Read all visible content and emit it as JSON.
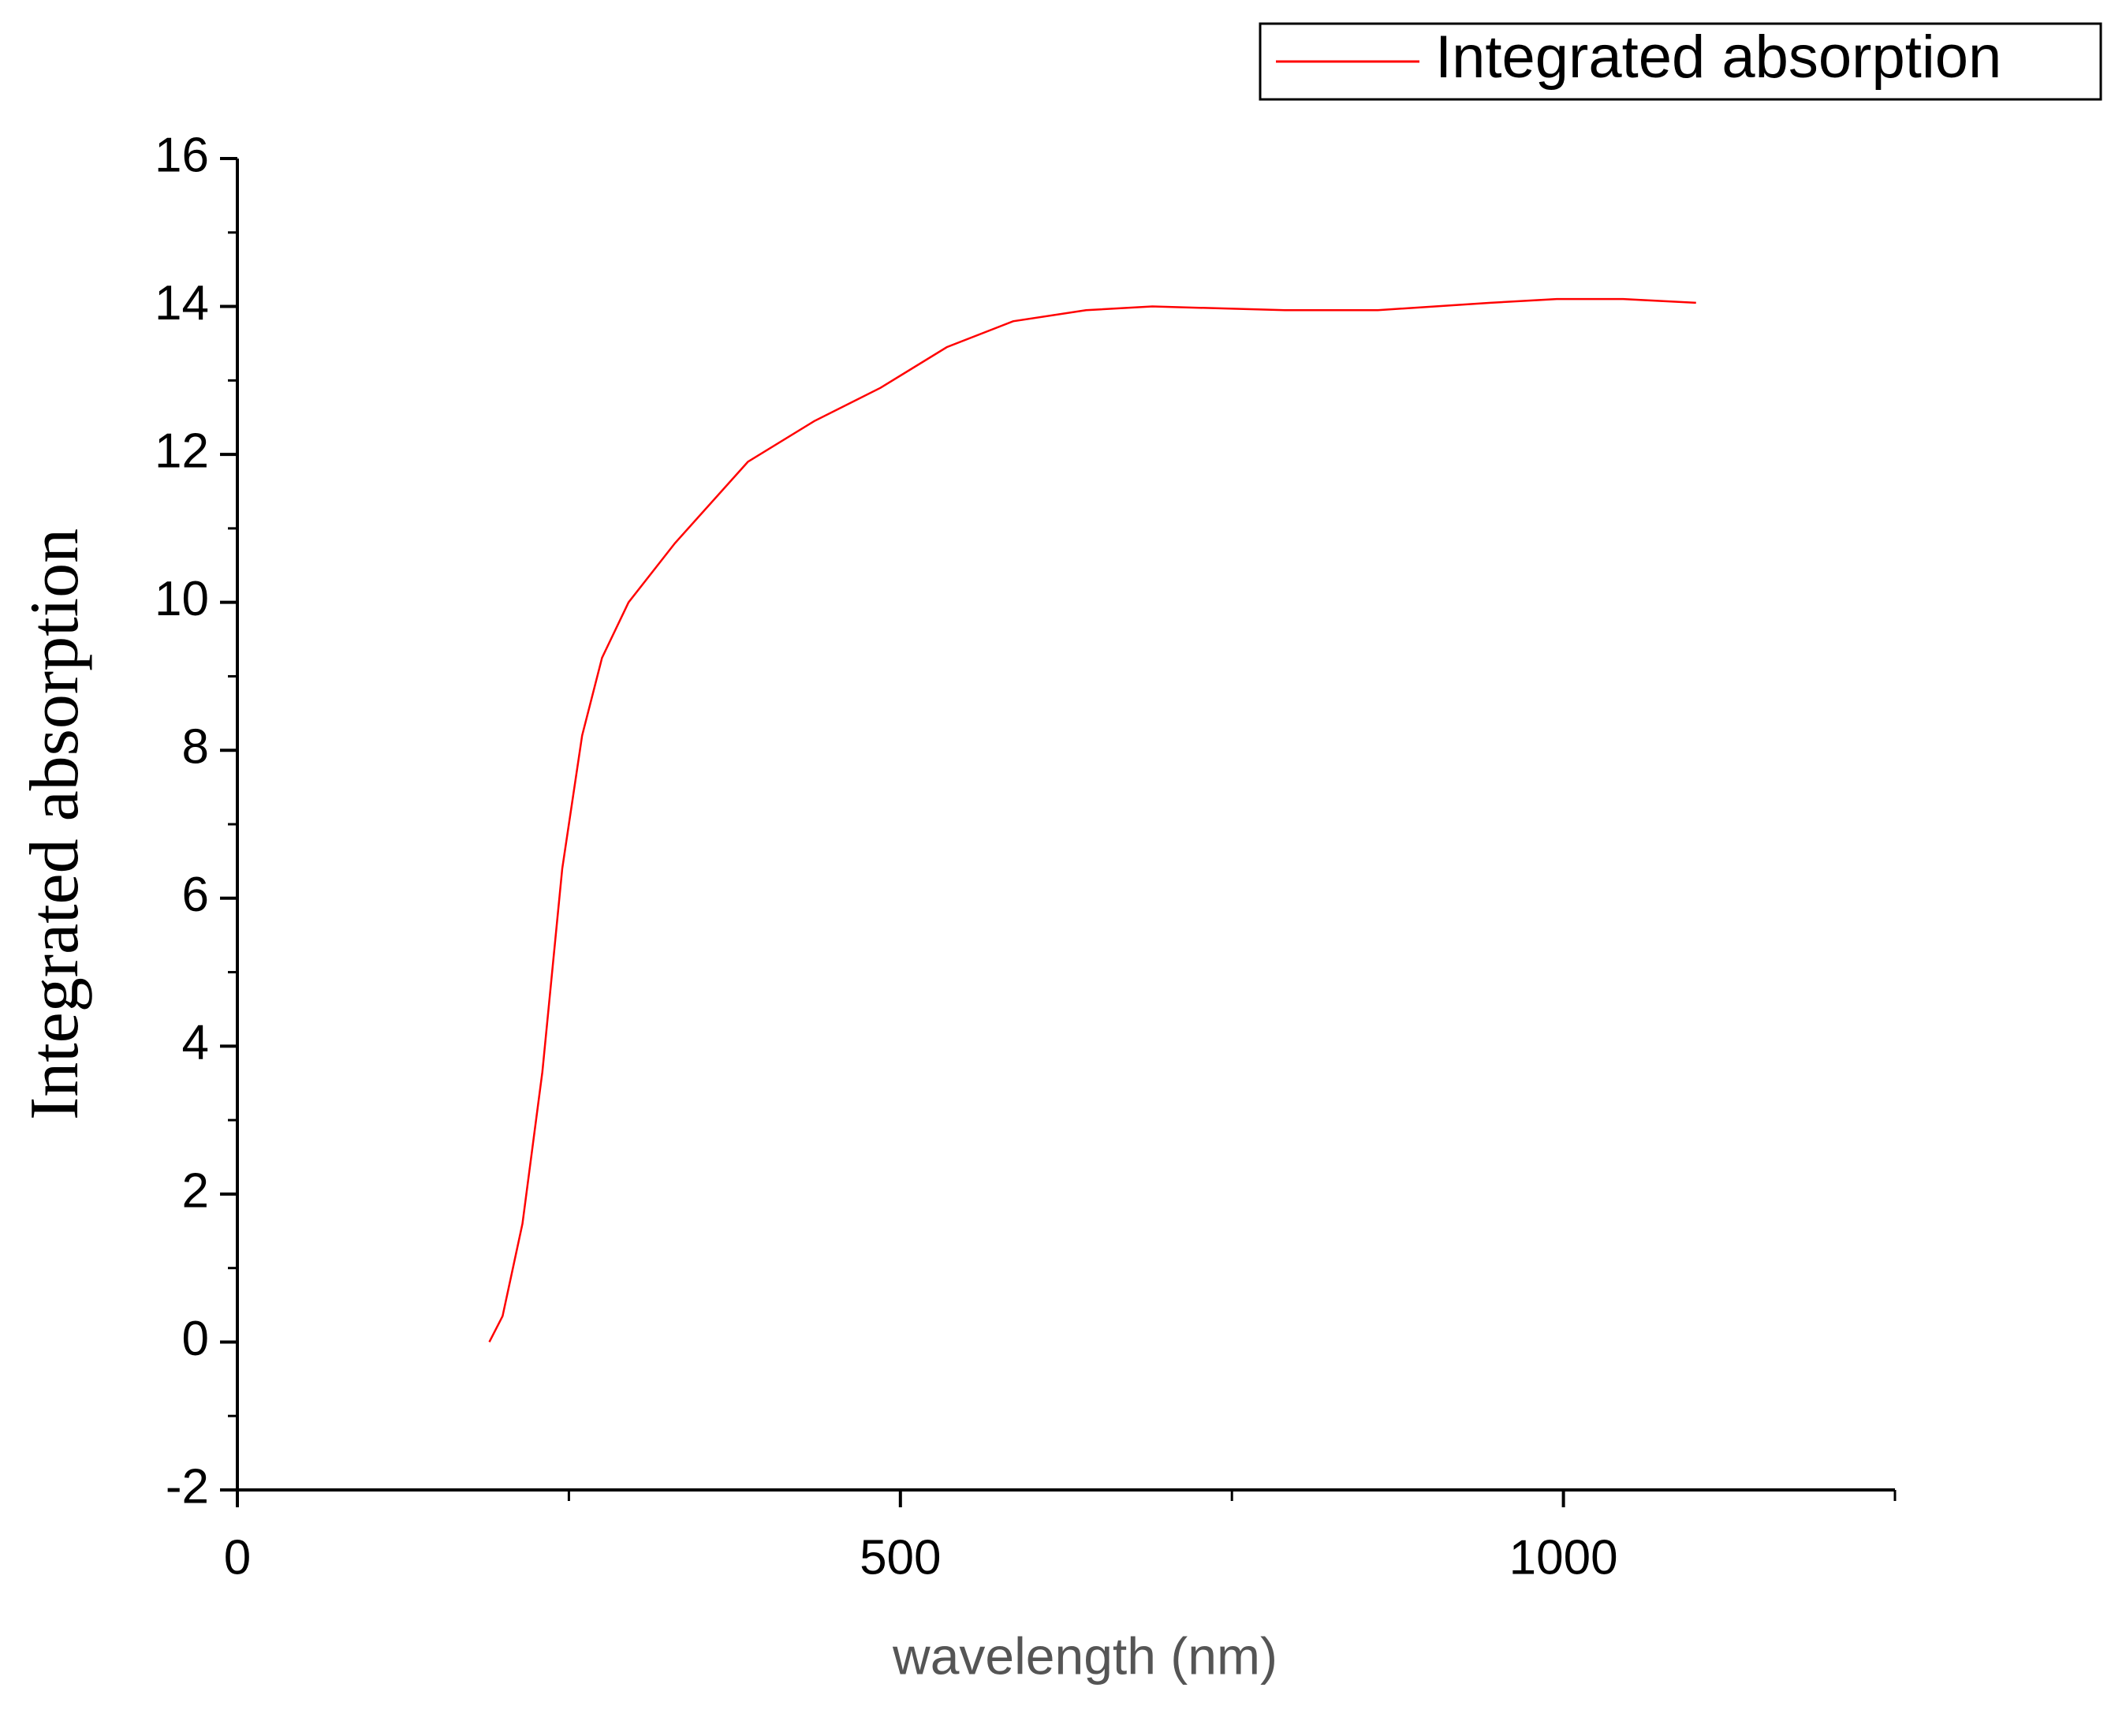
{
  "chart_data": {
    "type": "line",
    "x_label": "wavelength (nm)",
    "y_label": "Integrated absorption",
    "series": [
      {
        "name": "Integrated absorption",
        "color": "#ff0000",
        "x": [
          190,
          200,
          215,
          230,
          245,
          260,
          275,
          295,
          330,
          385,
          435,
          485,
          535,
          585,
          640,
          690,
          790,
          860,
          945,
          995,
          1045,
          1100
        ],
        "values": [
          0,
          0.35,
          1.6,
          3.65,
          6.4,
          8.2,
          9.25,
          10.0,
          10.8,
          11.9,
          12.45,
          12.9,
          13.45,
          13.8,
          13.95,
          14.0,
          13.95,
          13.95,
          14.05,
          14.1,
          14.1,
          14.05
        ]
      }
    ],
    "xlim": [
      0,
      1250
    ],
    "xticks": [
      0,
      500,
      1000
    ],
    "ylim": [
      -2,
      16
    ],
    "yticks": [
      -2,
      0,
      2,
      4,
      6,
      8,
      10,
      12,
      14,
      16
    ],
    "legend": "top-right"
  }
}
